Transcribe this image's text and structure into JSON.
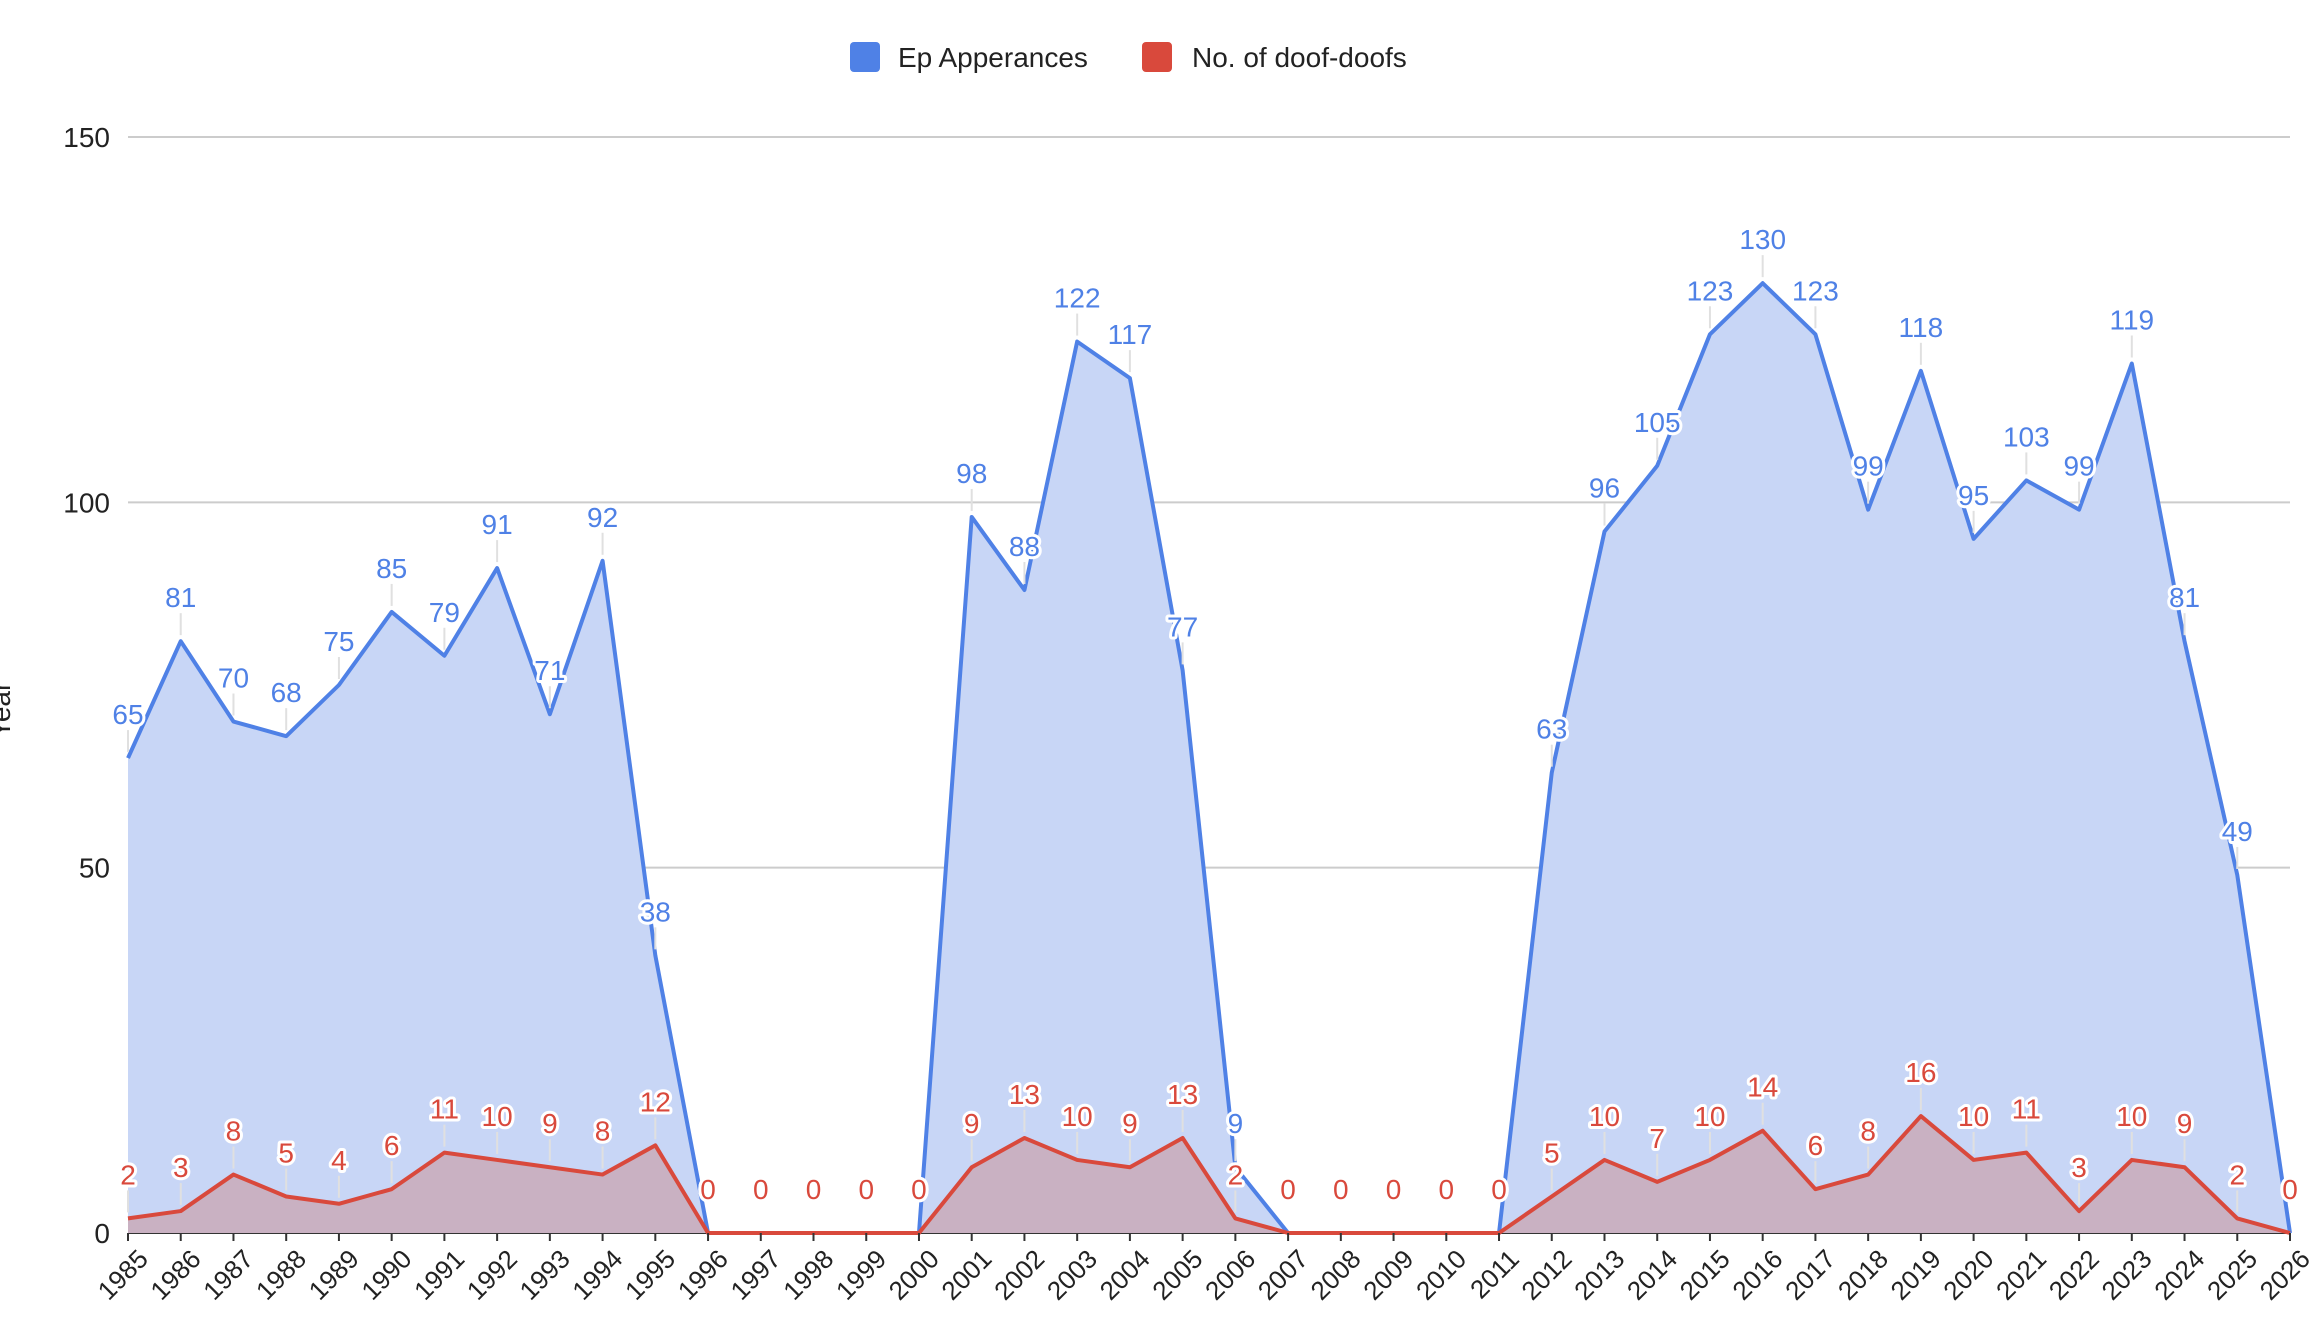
{
  "chart_data": {
    "type": "area",
    "title": "",
    "xlabel": "",
    "ylabel": "Year",
    "ylim": [
      0,
      150
    ],
    "yticks": [
      "0",
      "50",
      "100",
      "150"
    ],
    "grid": true,
    "legend_position": "top",
    "categories": [
      "1985",
      "1986",
      "1987",
      "1988",
      "1989",
      "1990",
      "1991",
      "1992",
      "1993",
      "1994",
      "1995",
      "1996",
      "1997",
      "1998",
      "1999",
      "2000",
      "2001",
      "2002",
      "2003",
      "2004",
      "2005",
      "2006",
      "2007",
      "2008",
      "2009",
      "2010",
      "2011",
      "2012",
      "2013",
      "2014",
      "2015",
      "2016",
      "2017",
      "2018",
      "2019",
      "2020",
      "2021",
      "2022",
      "2023",
      "2024",
      "2025",
      "2026"
    ],
    "series": [
      {
        "name": "Ep Apperances",
        "color": "#4f81e6",
        "fill": "#c8d6f6",
        "values": [
          65,
          81,
          70,
          68,
          75,
          85,
          79,
          91,
          71,
          92,
          38,
          0,
          0,
          0,
          0,
          0,
          98,
          88,
          122,
          117,
          77,
          9,
          0,
          0,
          0,
          0,
          0,
          63,
          96,
          105,
          123,
          130,
          123,
          99,
          118,
          95,
          103,
          99,
          119,
          81,
          49,
          0
        ]
      },
      {
        "name": "No. of doof-doofs",
        "color": "#d9493c",
        "fill": "#c9aab9",
        "values": [
          2,
          3,
          8,
          5,
          4,
          6,
          11,
          10,
          9,
          8,
          12,
          0,
          0,
          0,
          0,
          0,
          9,
          13,
          10,
          9,
          13,
          2,
          0,
          0,
          0,
          0,
          0,
          5,
          10,
          7,
          10,
          14,
          6,
          8,
          16,
          10,
          11,
          3,
          10,
          9,
          2,
          0
        ]
      }
    ]
  }
}
